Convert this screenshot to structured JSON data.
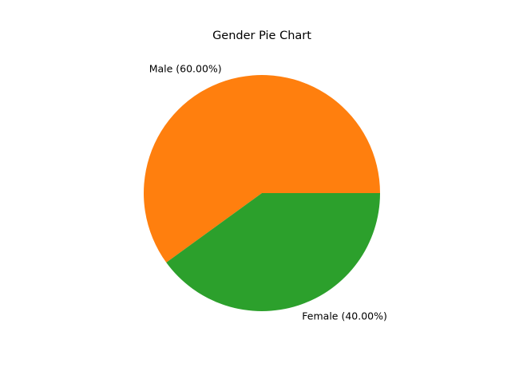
{
  "chart_data": {
    "type": "pie",
    "title": "Gender Pie Chart",
    "slices": [
      {
        "label": "Male (60.00%)",
        "value": 60.0,
        "color": "#ff7f0e"
      },
      {
        "label": "Female (40.00%)",
        "value": 40.0,
        "color": "#2ca02c"
      }
    ],
    "start_angle_deg": 0,
    "direction": "counterclockwise",
    "legend": "none"
  }
}
